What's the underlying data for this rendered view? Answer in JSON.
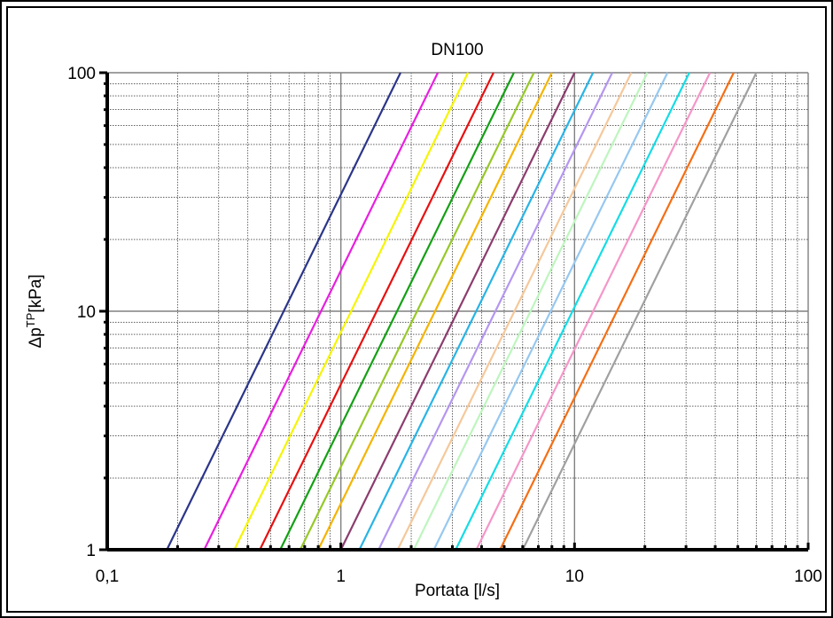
{
  "chart_data": {
    "type": "line",
    "title": "DN100",
    "xlabel": "Portata [l/s]",
    "ylabel": {
      "base": "Δp",
      "sup": "TP",
      "unit": "[kPa]"
    },
    "x_scale": "log",
    "y_scale": "log",
    "xlim": [
      0.1,
      100
    ],
    "ylim": [
      1,
      100
    ],
    "x_ticks": [
      {
        "value": 0.1,
        "label": "0,1"
      },
      {
        "value": 1,
        "label": "1"
      },
      {
        "value": 10,
        "label": "10"
      },
      {
        "value": 100,
        "label": "100"
      }
    ],
    "y_ticks": [
      {
        "value": 1,
        "label": "1"
      },
      {
        "value": 10,
        "label": "10"
      },
      {
        "value": 100,
        "label": "100"
      }
    ],
    "grid": true,
    "legend": "none",
    "series": [
      {
        "color": "#2B3589",
        "x": [
          0.18,
          1.8
        ],
        "y": [
          1,
          100
        ]
      },
      {
        "color": "#E91EE0",
        "x": [
          0.26,
          2.6
        ],
        "y": [
          1,
          100
        ]
      },
      {
        "color": "#F5F500",
        "x": [
          0.35,
          3.5
        ],
        "y": [
          1,
          100
        ]
      },
      {
        "color": "#E81010",
        "x": [
          0.45,
          4.5
        ],
        "y": [
          1,
          100
        ]
      },
      {
        "color": "#14A014",
        "x": [
          0.55,
          5.5
        ],
        "y": [
          1,
          100
        ]
      },
      {
        "color": "#96C828",
        "x": [
          0.67,
          6.7
        ],
        "y": [
          1,
          100
        ]
      },
      {
        "color": "#F5B400",
        "x": [
          0.8,
          8.0
        ],
        "y": [
          1,
          100
        ]
      },
      {
        "color": "#8C3C6E",
        "x": [
          1.0,
          10.0
        ],
        "y": [
          1,
          100
        ]
      },
      {
        "color": "#28B4E6",
        "x": [
          1.2,
          12.0
        ],
        "y": [
          1,
          100
        ]
      },
      {
        "color": "#B496F0",
        "x": [
          1.45,
          14.5
        ],
        "y": [
          1,
          100
        ]
      },
      {
        "color": "#F5C89B",
        "x": [
          1.75,
          17.5
        ],
        "y": [
          1,
          100
        ]
      },
      {
        "color": "#BEF5BE",
        "x": [
          2.05,
          20.5
        ],
        "y": [
          1,
          100
        ]
      },
      {
        "color": "#96C8F0",
        "x": [
          2.5,
          25.0
        ],
        "y": [
          1,
          100
        ]
      },
      {
        "color": "#14DCE6",
        "x": [
          3.1,
          31.0
        ],
        "y": [
          1,
          100
        ]
      },
      {
        "color": "#F596C8",
        "x": [
          3.8,
          38.0
        ],
        "y": [
          1,
          100
        ]
      },
      {
        "color": "#F56E14",
        "x": [
          4.8,
          48.0
        ],
        "y": [
          1,
          100
        ]
      },
      {
        "color": "#A0A0A0",
        "x": [
          6.0,
          60.0
        ],
        "y": [
          1,
          100
        ]
      }
    ]
  }
}
